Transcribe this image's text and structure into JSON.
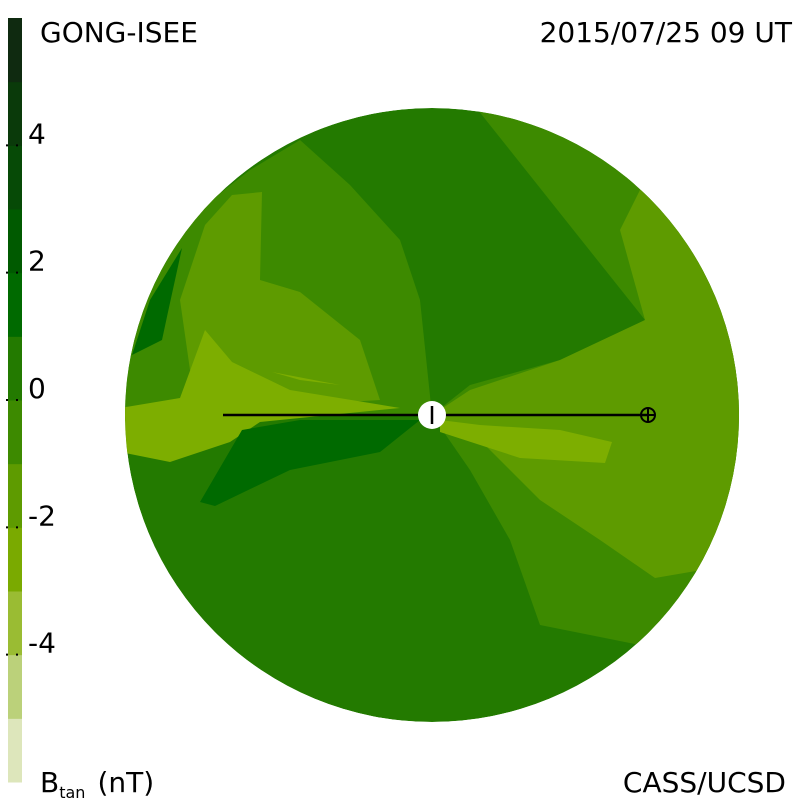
{
  "header": {
    "source": "GONG-ISEE",
    "timestamp": "2015/07/25 09 UT"
  },
  "colorbar": {
    "range": [
      -6,
      6
    ],
    "ticks": [
      4,
      2,
      0,
      -2,
      -4
    ],
    "colors": [
      "#dde6bb",
      "#bbd17a",
      "#9abc33",
      "#7aaa00",
      "#5e9b00",
      "#3d8a00",
      "#237a00",
      "#006a00",
      "#005a00",
      "#064a06",
      "#0a3a0a",
      "#0f2a10"
    ]
  },
  "footer": {
    "quantity": "B",
    "subscript": "tan",
    "unit": "(nT)",
    "credit": "CASS/UCSD"
  }
}
